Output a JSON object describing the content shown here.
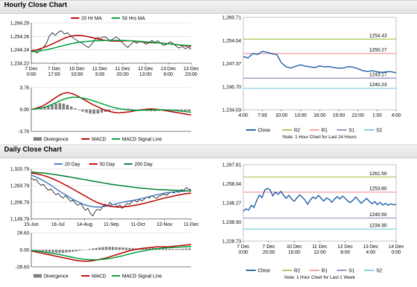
{
  "header": {
    "hourly_title": "Hourly Close Chart",
    "daily_title": "Daily Close Chart"
  },
  "colors": {
    "close": "#000000",
    "ma_short": "#c00000",
    "ma_long": "#00a040",
    "divergence": "#808080",
    "macd": "#c00000",
    "signal": "#00a040",
    "close_blue": "#1f5fa8",
    "r2": "#a7c957",
    "r1": "#f2a0a0",
    "s1": "#9b8ec4",
    "s2": "#7ecfe0",
    "grid": "#d0d0d0"
  },
  "chart_data": [
    {
      "id": "hourly_price",
      "type": "line",
      "yticks": [
        "1,264.29",
        "1,254.26",
        "1,244.24",
        "1,234.22"
      ],
      "ylim": [
        1234.22,
        1264.29
      ],
      "xticks": [
        [
          "7 Dec",
          "0:00"
        ],
        [
          "7 Dec",
          "17:00"
        ],
        [
          "10 Dec",
          "10:00"
        ],
        [
          "11 Dec",
          "3:00"
        ],
        [
          "11 Dec",
          "20:00"
        ],
        [
          "12 Dec",
          "13:00"
        ],
        [
          "13 Dec",
          "6:00"
        ],
        [
          "13 Dec",
          "23:00"
        ]
      ],
      "legend": [
        "20 Hr MA",
        "50 Hrs MA"
      ],
      "series": [
        {
          "name": "Close",
          "values": [
            1242.5,
            1243.0,
            1241.8,
            1244.5,
            1246.0,
            1249.0,
            1254.5,
            1257.0,
            1255.0,
            1257.5,
            1258.5,
            1256.0,
            1257.0,
            1254.5,
            1253.0,
            1251.5,
            1250.0,
            1249.0,
            1247.2,
            1246.0,
            1248.5,
            1251.5,
            1253.5,
            1252.8,
            1254.0,
            1253.2,
            1251.0,
            1252.2,
            1253.8,
            1252.5,
            1250.0,
            1247.8,
            1246.0,
            1248.2,
            1250.5,
            1249.2,
            1250.8,
            1250.0,
            1248.3,
            1249.5,
            1251.2,
            1249.8,
            1251.0,
            1249.0,
            1247.5,
            1248.5,
            1250.2,
            1249.0,
            1247.0,
            1245.5,
            1246.8,
            1245.2,
            1246.0,
            1245.0
          ]
        },
        {
          "name": "20 Hr MA",
          "values": [
            1243.5,
            1244.3,
            1245.6,
            1247.3,
            1249.2,
            1251.3,
            1253.2,
            1254.5,
            1255.0,
            1254.8,
            1254.0,
            1253.0,
            1252.0,
            1251.3,
            1250.8,
            1250.7,
            1250.8,
            1251.0,
            1250.8,
            1250.3,
            1249.8,
            1249.5,
            1249.4,
            1249.2,
            1248.8,
            1248.3,
            1247.8,
            1247.2,
            1246.7
          ]
        },
        {
          "name": "50 Hrs MA",
          "values": [
            1242.8,
            1243.2,
            1243.8,
            1244.6,
            1245.6,
            1246.7,
            1247.8,
            1248.8,
            1249.6,
            1250.2,
            1250.6,
            1250.9,
            1251.1,
            1251.2,
            1251.3,
            1251.3,
            1251.2,
            1251.0,
            1250.8,
            1250.5,
            1250.2,
            1249.9,
            1249.5,
            1249.1,
            1248.7,
            1248.3,
            1247.9,
            1247.6,
            1247.3
          ]
        }
      ]
    },
    {
      "id": "hourly_macd",
      "type": "line",
      "yticks": [
        "3.76",
        "0.00",
        "-3.76"
      ],
      "ylim": [
        -3.76,
        3.76
      ],
      "legend": [
        "Divergence",
        "MACD",
        "MACD Signal Line"
      ],
      "divergence": [
        0.05,
        0.1,
        0.2,
        0.4,
        0.6,
        0.8,
        1.0,
        1.1,
        1.0,
        0.8,
        0.5,
        0.2,
        -0.1,
        -0.35,
        -0.55,
        -0.7,
        -0.75,
        -0.7,
        -0.55,
        -0.4,
        -0.25,
        -0.1,
        0.0,
        0.1,
        0.15,
        0.15,
        0.1,
        0.05,
        -0.05,
        -0.15,
        -0.25,
        -0.3,
        -0.3,
        -0.25,
        -0.2,
        -0.15,
        -0.1,
        -0.1,
        -0.15,
        -0.2,
        -0.25,
        -0.3
      ],
      "series": [
        {
          "name": "MACD",
          "values": [
            0.0,
            0.2,
            0.5,
            1.0,
            1.6,
            2.2,
            2.7,
            2.9,
            2.7,
            2.3,
            1.8,
            1.3,
            0.8,
            0.4,
            0.0,
            -0.3,
            -0.5,
            -0.6,
            -0.5,
            -0.4,
            -0.25,
            -0.1,
            0.0,
            0.1,
            0.05,
            -0.05,
            -0.2,
            -0.35,
            -0.5,
            -0.65,
            -0.8,
            -0.95
          ]
        },
        {
          "name": "MACD Signal Line",
          "values": [
            0.0,
            0.1,
            0.25,
            0.5,
            0.85,
            1.25,
            1.65,
            1.95,
            2.1,
            2.1,
            1.95,
            1.75,
            1.5,
            1.2,
            0.9,
            0.6,
            0.35,
            0.15,
            0.0,
            -0.1,
            -0.15,
            -0.15,
            -0.12,
            -0.08,
            -0.05,
            -0.05,
            -0.08,
            -0.13,
            -0.2,
            -0.28,
            -0.38,
            -0.48
          ]
        }
      ]
    },
    {
      "id": "hourly_24h",
      "type": "line",
      "yticks": [
        "1,260.71",
        "1,254.04",
        "1,247.37",
        "1,240.70",
        "1,234.03"
      ],
      "ylim": [
        1234.03,
        1260.71
      ],
      "xticks": [
        "4:00",
        "7:00",
        "10:00",
        "13:00",
        "16:00",
        "19:00",
        "22:00",
        "1:00",
        "4:00"
      ],
      "levels": [
        {
          "name": "R2",
          "value": 1254.43,
          "label": "1254.43"
        },
        {
          "name": "R1",
          "value": 1250.27,
          "label": "1250.27"
        },
        {
          "name": "S1",
          "value": 1243.17,
          "label": "1243.17"
        },
        {
          "name": "S2",
          "value": 1240.23,
          "label": "1240.23"
        }
      ],
      "legend": [
        "Close",
        "R2",
        "R1",
        "S1",
        "S2"
      ],
      "note": "Note: 1 Hour Chart for Last 24 Hours",
      "series": [
        {
          "name": "Close",
          "values": [
            1249.4,
            1249.0,
            1250.3,
            1250.0,
            1250.9,
            1250.6,
            1250.2,
            1250.0,
            1247.6,
            1246.4,
            1246.1,
            1246.6,
            1247.0,
            1246.6,
            1246.4,
            1246.2,
            1246.7,
            1246.4,
            1246.5,
            1246.2,
            1246.0,
            1246.1,
            1246.5,
            1246.3,
            1245.9,
            1245.3,
            1245.1,
            1245.3,
            1245.0,
            1244.8,
            1245.0,
            1245.0,
            1244.7
          ]
        }
      ]
    },
    {
      "id": "daily_price",
      "type": "line",
      "yticks": [
        "1,320.79",
        "1,263.79",
        "1,206.79",
        "1,149.79"
      ],
      "ylim": [
        1149.79,
        1320.79
      ],
      "xticks": [
        "15-Jun",
        "16-Jul",
        "14-Aug",
        "11-Sep",
        "11-Oct",
        "12-Nov",
        "11-Dec"
      ],
      "legend": [
        "20 Day",
        "50 Day",
        "200 Day"
      ],
      "series": [
        {
          "name": "Close",
          "values": [
            1290,
            1282,
            1285,
            1272,
            1265,
            1268,
            1255,
            1248,
            1252,
            1242,
            1232,
            1237,
            1226,
            1221,
            1230,
            1219,
            1210,
            1214,
            1202,
            1196,
            1203,
            1191,
            1179,
            1186,
            1169,
            1160,
            1176,
            1183,
            1179,
            1192,
            1200,
            1195,
            1206,
            1197,
            1201,
            1191,
            1197,
            1186,
            1194,
            1203,
            1199,
            1210,
            1213,
            1207,
            1216,
            1211,
            1218,
            1225,
            1221,
            1229,
            1224,
            1220,
            1228,
            1231,
            1235,
            1230,
            1238,
            1242,
            1238,
            1245,
            1240,
            1250,
            1247,
            1257,
            1252,
            1249
          ]
        },
        {
          "name": "20 Day",
          "values": [
            1300,
            1290,
            1278,
            1264,
            1248,
            1234,
            1220,
            1208,
            1198,
            1192,
            1190,
            1192,
            1197,
            1203,
            1208,
            1212,
            1216,
            1222,
            1228,
            1233,
            1238,
            1241,
            1243,
            1245,
            1247
          ]
        },
        {
          "name": "50 Day",
          "values": [
            1307,
            1303,
            1297,
            1289,
            1279,
            1267,
            1255,
            1242,
            1229,
            1216,
            1205,
            1197,
            1192,
            1190,
            1191,
            1194,
            1198,
            1203,
            1209,
            1215,
            1221,
            1226,
            1231,
            1235,
            1238
          ]
        },
        {
          "name": "200 Day",
          "values": [
            1310,
            1308,
            1306,
            1303,
            1300,
            1296,
            1292,
            1288,
            1284,
            1280,
            1276,
            1272,
            1268,
            1265,
            1262,
            1259,
            1256,
            1254,
            1252,
            1250,
            1249,
            1248,
            1247,
            1246,
            1245
          ]
        }
      ]
    },
    {
      "id": "daily_macd",
      "type": "line",
      "yticks": [
        "28.63",
        "0.00",
        "-28.63"
      ],
      "ylim": [
        -28.63,
        28.63
      ],
      "legend": [
        "Divergence",
        "MACD",
        "MACD Signal Line"
      ],
      "divergence": [
        -1.5,
        -2.0,
        -2.5,
        -3.0,
        -3.5,
        -4.0,
        -4.5,
        -5.0,
        -5.2,
        -5.0,
        -4.6,
        -4.0,
        -3.4,
        -2.6,
        -1.6,
        -0.6,
        0.4,
        1.4,
        2.4,
        3.2,
        4.0,
        4.6,
        5.0,
        5.2,
        5.0,
        4.6,
        4.2,
        4.0,
        3.6,
        3.2,
        2.8,
        2.4,
        2.2,
        2.0,
        2.2,
        2.6,
        3.0,
        3.0,
        2.8,
        2.4,
        2.0,
        1.6,
        1.4,
        1.2,
        1.4,
        1.8,
        2.2,
        2.6
      ],
      "series": [
        {
          "name": "MACD",
          "values": [
            -2,
            -4,
            -6,
            -8,
            -10,
            -12,
            -14,
            -16,
            -18,
            -19,
            -19,
            -18,
            -16,
            -14,
            -11,
            -8,
            -5,
            -2,
            0,
            2,
            3,
            4,
            5,
            5,
            5,
            6,
            7,
            8,
            9
          ]
        },
        {
          "name": "MACD Signal Line",
          "values": [
            -1,
            -2,
            -3.5,
            -5,
            -6.5,
            -8,
            -10,
            -12,
            -14,
            -15.5,
            -16.5,
            -17,
            -16.5,
            -15.5,
            -14,
            -12,
            -10,
            -7.5,
            -5,
            -3,
            -1,
            0.5,
            2,
            3,
            3.5,
            4,
            4.5,
            5,
            5.5
          ]
        }
      ]
    },
    {
      "id": "daily_1w",
      "type": "line",
      "yticks": [
        "1,267.81",
        "1,258.04",
        "1,248.27",
        "1,238.50",
        "1,228.73"
      ],
      "ylim": [
        1228.73,
        1267.81
      ],
      "xticks": [
        [
          "7 Dec",
          "0:00"
        ],
        [
          "7 Dec",
          "20:00"
        ],
        [
          "10 Dec",
          "16:00"
        ],
        [
          "11 Dec",
          "12:00"
        ],
        [
          "12 Dec",
          "8:00"
        ],
        [
          "13 Dec",
          "4:00"
        ],
        [
          "14 Dec",
          "0:00"
        ]
      ],
      "levels": [
        {
          "name": "R2",
          "value": 1261.5,
          "label": "1261.50"
        },
        {
          "name": "R1",
          "value": 1253.8,
          "label": "1253.80"
        },
        {
          "name": "S1",
          "value": 1240.5,
          "label": "1240.50"
        },
        {
          "name": "S2",
          "value": 1234.9,
          "label": "1234.90"
        }
      ],
      "legend": [
        "Close",
        "R2",
        "R1",
        "S1",
        "S2"
      ],
      "note": "Note: 1 Hour Chart for Last 1 Week",
      "series": [
        {
          "name": "Close",
          "values": [
            1244.0,
            1245.2,
            1244.6,
            1247.0,
            1246.0,
            1249.5,
            1252.3,
            1251.0,
            1254.8,
            1255.7,
            1254.9,
            1251.9,
            1253.8,
            1252.6,
            1254.2,
            1252.2,
            1250.6,
            1252.1,
            1250.3,
            1249.1,
            1250.8,
            1252.4,
            1251.2,
            1249.7,
            1247.6,
            1249.8,
            1251.3,
            1250.4,
            1252.1,
            1250.7,
            1249.2,
            1250.8,
            1250.1,
            1248.6,
            1250.2,
            1251.5,
            1250.3,
            1251.8,
            1250.6,
            1249.2,
            1248.5,
            1249.8,
            1251.3,
            1249.6,
            1248.1,
            1249.4,
            1250.6,
            1249.1,
            1247.8,
            1248.9,
            1247.4,
            1248.6,
            1247.2,
            1248.0,
            1247.1,
            1247.8,
            1247.3,
            1247.6
          ]
        }
      ]
    }
  ]
}
